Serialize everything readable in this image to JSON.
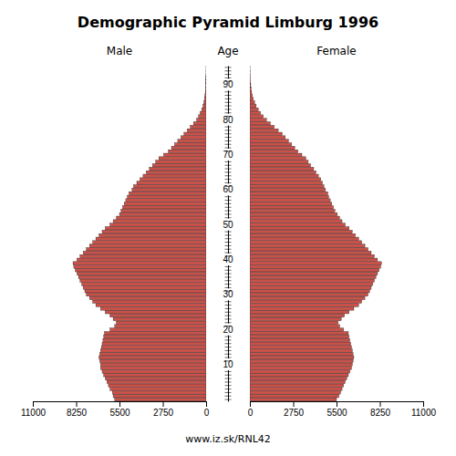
{
  "chart_data": {
    "type": "bar",
    "orientation": "horizontal",
    "title": "Demographic Pyramid Limburg 1996",
    "ylabel": "Age",
    "annotations": [
      "www.iz.sk/RNL42"
    ],
    "categories": [
      null,
      null,
      null,
      null,
      null,
      null,
      null,
      null,
      null,
      null,
      10,
      null,
      null,
      null,
      null,
      null,
      null,
      null,
      null,
      null,
      20,
      null,
      null,
      null,
      null,
      null,
      null,
      null,
      null,
      null,
      30,
      null,
      null,
      null,
      null,
      null,
      null,
      null,
      null,
      null,
      40,
      null,
      null,
      null,
      null,
      null,
      null,
      null,
      null,
      null,
      50,
      null,
      null,
      null,
      null,
      null,
      null,
      null,
      null,
      null,
      60,
      null,
      null,
      null,
      null,
      null,
      null,
      null,
      null,
      null,
      70,
      null,
      null,
      null,
      null,
      null,
      null,
      null,
      null,
      null,
      80,
      null,
      null,
      null,
      null,
      null,
      null,
      null,
      null,
      null,
      90,
      null,
      null,
      null,
      null,
      null
    ],
    "series": [
      {
        "name": "Male",
        "color": "#C8524A",
        "values": [
          5800,
          5900,
          5950,
          6100,
          6200,
          6300,
          6400,
          6500,
          6600,
          6700,
          6700,
          6750,
          6800,
          6750,
          6700,
          6650,
          6600,
          6550,
          6500,
          6450,
          6100,
          5800,
          5700,
          5900,
          6100,
          6400,
          6700,
          7000,
          7200,
          7400,
          7600,
          7700,
          7800,
          7900,
          8000,
          8100,
          8200,
          8300,
          8400,
          8450,
          8200,
          8000,
          7800,
          7600,
          7400,
          7200,
          7000,
          6800,
          6600,
          6400,
          6100,
          5900,
          5700,
          5500,
          5400,
          5300,
          5200,
          5100,
          5000,
          4900,
          4700,
          4600,
          4400,
          4200,
          4000,
          3800,
          3600,
          3400,
          3200,
          3000,
          2700,
          2400,
          2200,
          2000,
          1800,
          1600,
          1400,
          1200,
          1000,
          800,
          600,
          480,
          380,
          280,
          200,
          140,
          100,
          70,
          50,
          35,
          25,
          18,
          12,
          8,
          5,
          3
        ]
      },
      {
        "name": "Female",
        "color": "#C8524A",
        "values": [
          5500,
          5650,
          5750,
          5850,
          5950,
          6050,
          6150,
          6250,
          6350,
          6450,
          6500,
          6550,
          6600,
          6550,
          6500,
          6450,
          6400,
          6350,
          6300,
          6250,
          5950,
          5700,
          5600,
          5800,
          6000,
          6300,
          6600,
          6900,
          7100,
          7300,
          7500,
          7600,
          7700,
          7800,
          7900,
          8000,
          8100,
          8200,
          8300,
          8350,
          8100,
          7900,
          7700,
          7500,
          7300,
          7100,
          6900,
          6700,
          6500,
          6300,
          6050,
          5850,
          5700,
          5550,
          5400,
          5300,
          5200,
          5100,
          5000,
          4950,
          4800,
          4700,
          4600,
          4500,
          4350,
          4200,
          4050,
          3850,
          3700,
          3550,
          3300,
          3050,
          2850,
          2650,
          2450,
          2250,
          2050,
          1800,
          1550,
          1300,
          1050,
          850,
          680,
          530,
          400,
          300,
          220,
          160,
          110,
          80,
          55,
          38,
          25,
          16,
          10,
          6
        ]
      }
    ],
    "xlim": [
      0,
      11000
    ],
    "xticks": [
      0,
      2750,
      5500,
      8250,
      11000
    ],
    "grid": false
  }
}
